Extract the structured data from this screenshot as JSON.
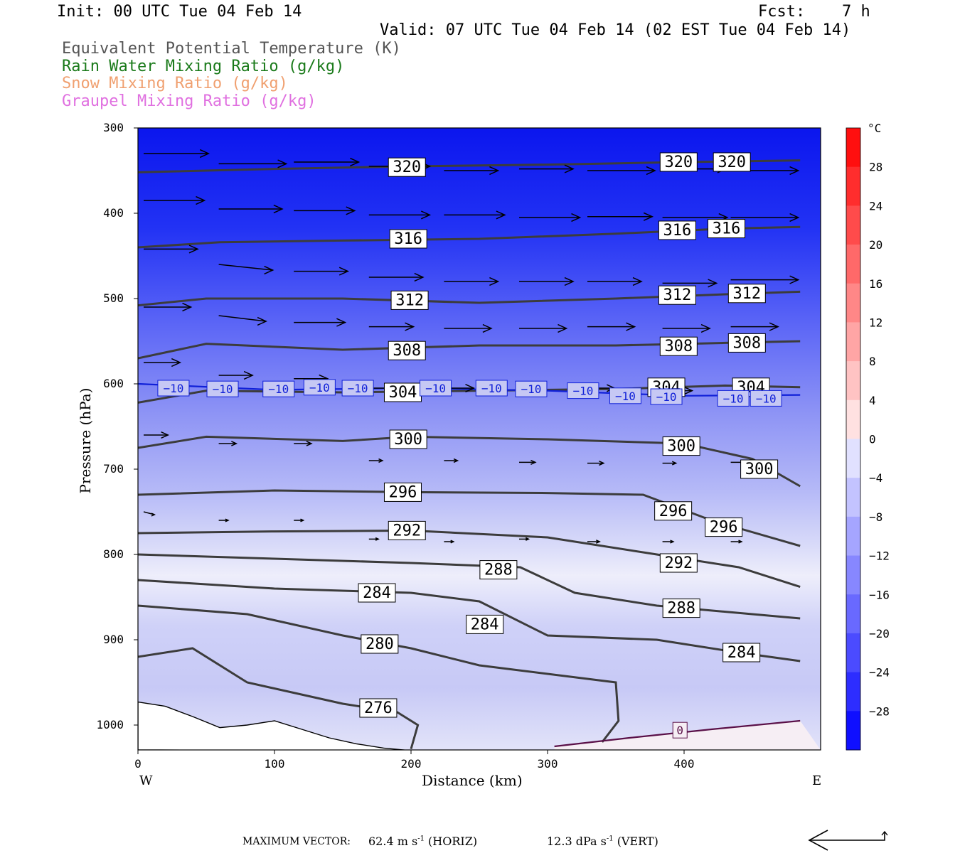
{
  "header": {
    "init": "Init: 00 UTC Tue 04 Feb 14",
    "fcst_label": "Fcst:",
    "fcst_value": "7 h",
    "valid": "Valid: 07 UTC Tue 04 Feb 14 (02 EST Tue 04 Feb 14)"
  },
  "legend": [
    {
      "text": "Equivalent Potential Temperature (K)",
      "color": "#555555"
    },
    {
      "text": "Rain Water Mixing Ratio (g/kg)",
      "color": "#1a7a1a"
    },
    {
      "text": "Snow Mixing Ratio (g/kg)",
      "color": "#f0a070"
    },
    {
      "text": "Graupel Mixing Ratio (g/kg)",
      "color": "#e070e0"
    }
  ],
  "footer": {
    "max_vector_label": "MAXIMUM VECTOR:",
    "horiz": "62.4 m s",
    "horiz_exp": "-1",
    "horiz_tag": "(HORIZ)",
    "vert": "12.3 dPa s",
    "vert_exp": "-1",
    "vert_tag": "(VERT)"
  },
  "chart_data": {
    "type": "contour",
    "xlabel": "Distance (km)",
    "ylabel": "Pressure (hPa)",
    "xlim": [
      0,
      485
    ],
    "ylim": [
      1030,
      300
    ],
    "x_ticks": [
      0,
      100,
      200,
      300,
      400
    ],
    "y_ticks": [
      300,
      400,
      500,
      600,
      700,
      800,
      900,
      1000
    ],
    "x_end_labels": {
      "left": "W",
      "right": "E"
    },
    "colorbar": {
      "unit": "°C",
      "ticks": [
        28,
        24,
        20,
        16,
        12,
        8,
        4,
        0,
        -4,
        -8,
        -12,
        -16,
        -20,
        -24,
        -28
      ],
      "range": [
        -32,
        32
      ]
    },
    "theta_e_contours": [
      {
        "value": 320,
        "points": [
          [
            0,
            352
          ],
          [
            100,
            348
          ],
          [
            200,
            345
          ],
          [
            300,
            343
          ],
          [
            400,
            340
          ],
          [
            485,
            338
          ]
        ],
        "labels": [
          [
            197,
            346
          ],
          [
            396,
            340
          ],
          [
            435,
            340
          ]
        ]
      },
      {
        "value": 316,
        "points": [
          [
            0,
            440
          ],
          [
            60,
            434
          ],
          [
            150,
            432
          ],
          [
            250,
            430
          ],
          [
            350,
            424
          ],
          [
            430,
            418
          ],
          [
            485,
            416
          ]
        ],
        "labels": [
          [
            198,
            430
          ],
          [
            395,
            420
          ],
          [
            431,
            418
          ]
        ]
      },
      {
        "value": 312,
        "points": [
          [
            0,
            508
          ],
          [
            50,
            500
          ],
          [
            150,
            500
          ],
          [
            250,
            505
          ],
          [
            350,
            500
          ],
          [
            430,
            495
          ],
          [
            485,
            492
          ]
        ],
        "labels": [
          [
            199,
            502
          ],
          [
            395,
            496
          ],
          [
            446,
            494
          ]
        ]
      },
      {
        "value": 308,
        "points": [
          [
            0,
            570
          ],
          [
            50,
            553
          ],
          [
            150,
            560
          ],
          [
            250,
            555
          ],
          [
            350,
            555
          ],
          [
            430,
            552
          ],
          [
            485,
            550
          ]
        ],
        "labels": [
          [
            197,
            561
          ],
          [
            396,
            556
          ],
          [
            446,
            552
          ]
        ]
      },
      {
        "value": 304,
        "points": [
          [
            0,
            622
          ],
          [
            50,
            608
          ],
          [
            150,
            610
          ],
          [
            250,
            608
          ],
          [
            350,
            606
          ],
          [
            430,
            602
          ],
          [
            485,
            604
          ]
        ],
        "labels": [
          [
            194,
            610
          ],
          [
            387,
            604
          ],
          [
            449,
            604
          ]
        ]
      },
      {
        "value": 300,
        "points": [
          [
            0,
            675
          ],
          [
            50,
            662
          ],
          [
            150,
            667
          ],
          [
            200,
            662
          ],
          [
            300,
            665
          ],
          [
            400,
            670
          ],
          [
            450,
            688
          ],
          [
            485,
            720
          ]
        ],
        "labels": [
          [
            198,
            665
          ],
          [
            398,
            673
          ],
          [
            455,
            700
          ]
        ]
      },
      {
        "value": 296,
        "points": [
          [
            0,
            730
          ],
          [
            100,
            725
          ],
          [
            200,
            727
          ],
          [
            300,
            728
          ],
          [
            370,
            730
          ],
          [
            420,
            760
          ],
          [
            485,
            790
          ]
        ],
        "labels": [
          [
            194,
            727
          ],
          [
            392,
            749
          ],
          [
            429,
            768
          ]
        ]
      },
      {
        "value": 292,
        "points": [
          [
            0,
            775
          ],
          [
            100,
            773
          ],
          [
            200,
            772
          ],
          [
            300,
            780
          ],
          [
            380,
            800
          ],
          [
            440,
            815
          ],
          [
            485,
            838
          ]
        ],
        "labels": [
          [
            197,
            772
          ],
          [
            396,
            810
          ]
        ]
      },
      {
        "value": 288,
        "points": [
          [
            0,
            800
          ],
          [
            100,
            805
          ],
          [
            200,
            810
          ],
          [
            280,
            815
          ],
          [
            320,
            845
          ],
          [
            380,
            860
          ],
          [
            485,
            875
          ]
        ],
        "labels": [
          [
            264,
            818
          ],
          [
            398,
            863
          ]
        ]
      },
      {
        "value": 284,
        "points": [
          [
            0,
            830
          ],
          [
            100,
            840
          ],
          [
            200,
            845
          ],
          [
            250,
            855
          ],
          [
            300,
            895
          ],
          [
            380,
            900
          ],
          [
            440,
            915
          ],
          [
            485,
            925
          ]
        ],
        "labels": [
          [
            175,
            845
          ],
          [
            254,
            882
          ],
          [
            442,
            915
          ]
        ]
      },
      {
        "value": 280,
        "points": [
          [
            0,
            860
          ],
          [
            80,
            870
          ],
          [
            150,
            895
          ],
          [
            200,
            910
          ],
          [
            250,
            930
          ],
          [
            350,
            950
          ],
          [
            352,
            995
          ],
          [
            340,
            1020
          ]
        ],
        "labels": [
          [
            177,
            905
          ]
        ]
      },
      {
        "value": 276,
        "points": [
          [
            0,
            920
          ],
          [
            40,
            910
          ],
          [
            80,
            950
          ],
          [
            150,
            975
          ],
          [
            190,
            985
          ],
          [
            205,
            1000
          ],
          [
            200,
            1028
          ]
        ],
        "labels": [
          [
            176,
            980
          ]
        ]
      }
    ],
    "temp_contours": [
      {
        "value": -10,
        "points": [
          [
            0,
            600
          ],
          [
            100,
            607
          ],
          [
            200,
            605
          ],
          [
            300,
            608
          ],
          [
            400,
            614
          ],
          [
            485,
            613
          ]
        ],
        "labels": [
          [
            26,
            605
          ],
          [
            62,
            606
          ],
          [
            103,
            606
          ],
          [
            133,
            604
          ],
          [
            161,
            605
          ],
          [
            218,
            605
          ],
          [
            259,
            605
          ],
          [
            288,
            606
          ],
          [
            326,
            608
          ],
          [
            357,
            614
          ],
          [
            387,
            615
          ],
          [
            436,
            617
          ],
          [
            460,
            617
          ]
        ]
      },
      {
        "value": 0,
        "points": [
          [
            305,
            1025
          ],
          [
            360,
            1015
          ],
          [
            420,
            1005
          ],
          [
            485,
            995
          ]
        ],
        "labels": [
          [
            397,
            1006
          ]
        ]
      }
    ],
    "wind_vectors": [
      {
        "x": 0,
        "p": 330,
        "u": 48,
        "w": 0
      },
      {
        "x": 55,
        "p": 342,
        "u": 50,
        "w": 0
      },
      {
        "x": 110,
        "p": 340,
        "u": 48,
        "w": 0
      },
      {
        "x": 165,
        "p": 345,
        "u": 45,
        "w": 0
      },
      {
        "x": 220,
        "p": 350,
        "u": 40,
        "w": 0
      },
      {
        "x": 275,
        "p": 348,
        "u": 40,
        "w": 0
      },
      {
        "x": 325,
        "p": 350,
        "u": 50,
        "w": 0
      },
      {
        "x": 380,
        "p": 348,
        "u": 47,
        "w": 0
      },
      {
        "x": 430,
        "p": 350,
        "u": 50,
        "w": 0
      },
      {
        "x": 0,
        "p": 385,
        "u": 45,
        "w": 0
      },
      {
        "x": 55,
        "p": 395,
        "u": 47,
        "w": 0
      },
      {
        "x": 110,
        "p": 397,
        "u": 45,
        "w": 0
      },
      {
        "x": 165,
        "p": 402,
        "u": 45,
        "w": 0
      },
      {
        "x": 220,
        "p": 402,
        "u": 45,
        "w": 0
      },
      {
        "x": 275,
        "p": 405,
        "u": 45,
        "w": 0
      },
      {
        "x": 325,
        "p": 404,
        "u": 48,
        "w": 0
      },
      {
        "x": 380,
        "p": 405,
        "u": 48,
        "w": 0
      },
      {
        "x": 430,
        "p": 405,
        "u": 50,
        "w": 0
      },
      {
        "x": 0,
        "p": 442,
        "u": 40,
        "w": 0
      },
      {
        "x": 55,
        "p": 460,
        "u": 40,
        "w": 2
      },
      {
        "x": 110,
        "p": 468,
        "u": 40,
        "w": 0
      },
      {
        "x": 165,
        "p": 475,
        "u": 40,
        "w": 0
      },
      {
        "x": 220,
        "p": 480,
        "u": 40,
        "w": 0
      },
      {
        "x": 275,
        "p": 480,
        "u": 40,
        "w": 0
      },
      {
        "x": 325,
        "p": 480,
        "u": 40,
        "w": 0
      },
      {
        "x": 380,
        "p": 482,
        "u": 40,
        "w": 0
      },
      {
        "x": 430,
        "p": 478,
        "u": 50,
        "w": 0
      },
      {
        "x": 0,
        "p": 510,
        "u": 35,
        "w": 0
      },
      {
        "x": 55,
        "p": 520,
        "u": 35,
        "w": 2
      },
      {
        "x": 110,
        "p": 528,
        "u": 38,
        "w": 0
      },
      {
        "x": 165,
        "p": 533,
        "u": 33,
        "w": 0
      },
      {
        "x": 220,
        "p": 535,
        "u": 35,
        "w": 0
      },
      {
        "x": 275,
        "p": 535,
        "u": 35,
        "w": 0
      },
      {
        "x": 325,
        "p": 533,
        "u": 35,
        "w": 0
      },
      {
        "x": 380,
        "p": 535,
        "u": 35,
        "w": 0
      },
      {
        "x": 430,
        "p": 533,
        "u": 35,
        "w": 0
      },
      {
        "x": 0,
        "p": 575,
        "u": 27,
        "w": 0
      },
      {
        "x": 55,
        "p": 590,
        "u": 25,
        "w": 0
      },
      {
        "x": 110,
        "p": 594,
        "u": 25,
        "w": 0
      },
      {
        "x": 165,
        "p": 605,
        "u": 22,
        "w": 0
      },
      {
        "x": 220,
        "p": 605,
        "u": 22,
        "w": 0
      },
      {
        "x": 275,
        "p": 608,
        "u": 20,
        "w": 0
      },
      {
        "x": 325,
        "p": 605,
        "u": 20,
        "w": 0
      },
      {
        "x": 380,
        "p": 608,
        "u": 22,
        "w": 0
      },
      {
        "x": 430,
        "p": 612,
        "u": 22,
        "w": 0
      },
      {
        "x": 0,
        "p": 660,
        "u": 18,
        "w": 0
      },
      {
        "x": 55,
        "p": 670,
        "u": 13,
        "w": 0
      },
      {
        "x": 110,
        "p": 670,
        "u": 13,
        "w": 0
      },
      {
        "x": 165,
        "p": 690,
        "u": 10,
        "w": 0
      },
      {
        "x": 220,
        "p": 690,
        "u": 10,
        "w": 0
      },
      {
        "x": 275,
        "p": 692,
        "u": 12,
        "w": 0
      },
      {
        "x": 325,
        "p": 693,
        "u": 12,
        "w": 0
      },
      {
        "x": 380,
        "p": 693,
        "u": 10,
        "w": 0
      },
      {
        "x": 430,
        "p": 692,
        "u": 10,
        "w": 0
      },
      {
        "x": 0,
        "p": 750,
        "u": 8,
        "w": 1
      },
      {
        "x": 55,
        "p": 760,
        "u": 7,
        "w": 0
      },
      {
        "x": 110,
        "p": 760,
        "u": 7,
        "w": 0
      },
      {
        "x": 165,
        "p": 782,
        "u": 7,
        "w": 0
      },
      {
        "x": 220,
        "p": 785,
        "u": 7,
        "w": 0
      },
      {
        "x": 275,
        "p": 782,
        "u": 7,
        "w": 0
      },
      {
        "x": 325,
        "p": 785,
        "u": 9,
        "w": 0
      },
      {
        "x": 380,
        "p": 785,
        "u": 8,
        "w": 0
      },
      {
        "x": 430,
        "p": 785,
        "u": 8,
        "w": 0
      }
    ]
  }
}
